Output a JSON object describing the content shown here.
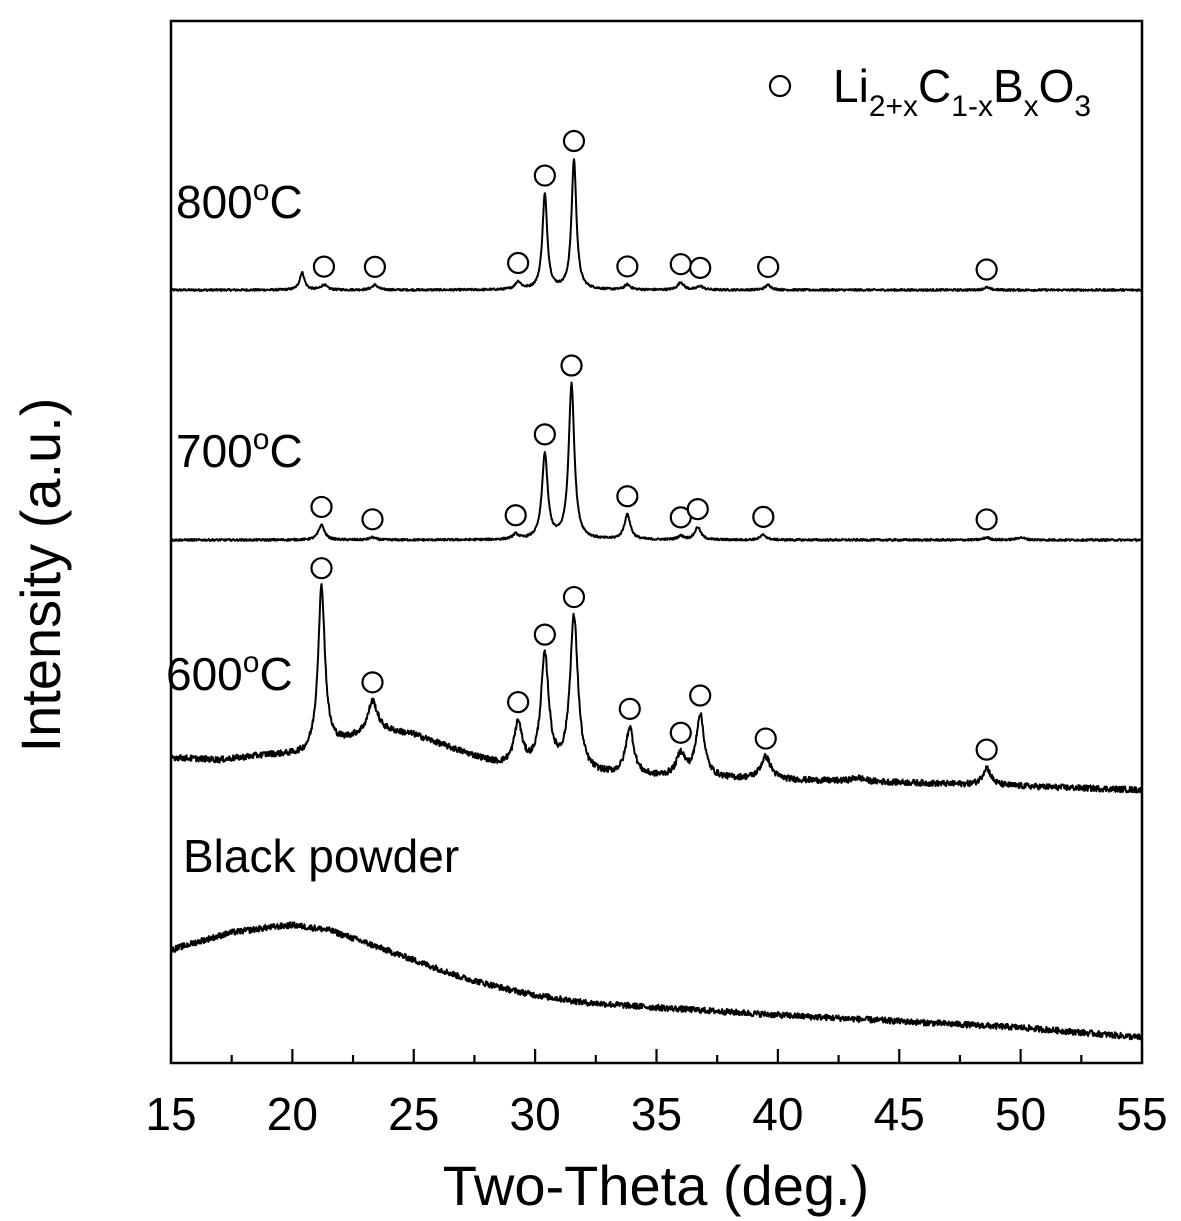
{
  "chart_data": {
    "type": "line",
    "title": "",
    "xlabel": "Two-Theta (deg.)",
    "ylabel": "Intensity (a.u.)",
    "xlim": [
      15,
      55
    ],
    "xticks": [
      15,
      20,
      25,
      30,
      35,
      40,
      45,
      50,
      55
    ],
    "grid": false,
    "legend": {
      "placement": "top-right",
      "marker": "open-circle",
      "label_parts": [
        {
          "text": "Li",
          "sub": false
        },
        {
          "text": "2+x",
          "sub": true
        },
        {
          "text": "C",
          "sub": false
        },
        {
          "text": "1-x",
          "sub": true
        },
        {
          "text": "B",
          "sub": false
        },
        {
          "text": "x",
          "sub": true
        },
        {
          "text": "O",
          "sub": false
        },
        {
          "text": "3",
          "sub": true
        }
      ]
    },
    "series": [
      {
        "name": "800°C",
        "label_parts": [
          {
            "text": "800",
            "sup": false
          },
          {
            "text": "o",
            "sup": true
          },
          {
            "text": "C",
            "sup": false
          }
        ],
        "offset": 3.0,
        "noise": 0.004,
        "base": [
          [
            15,
            0
          ],
          [
            55,
            0
          ]
        ],
        "peaks": [
          [
            20.4,
            0.07,
            0.12
          ],
          [
            21.3,
            0.02,
            0.15
          ],
          [
            23.4,
            0.02,
            0.15
          ],
          [
            29.3,
            0.03,
            0.15
          ],
          [
            30.4,
            0.38,
            0.12
          ],
          [
            31.6,
            0.52,
            0.12
          ],
          [
            33.8,
            0.02,
            0.15
          ],
          [
            36.0,
            0.03,
            0.15
          ],
          [
            36.8,
            0.015,
            0.15
          ],
          [
            39.6,
            0.02,
            0.15
          ],
          [
            48.6,
            0.01,
            0.15
          ]
        ],
        "markers": [
          21.3,
          23.4,
          29.3,
          30.4,
          31.6,
          33.8,
          36.0,
          36.8,
          39.6,
          48.6
        ]
      },
      {
        "name": "700°C",
        "label_parts": [
          {
            "text": "700",
            "sup": false
          },
          {
            "text": "o",
            "sup": true
          },
          {
            "text": "C",
            "sup": false
          }
        ],
        "offset": 2.0,
        "noise": 0.004,
        "base": [
          [
            15,
            0
          ],
          [
            55,
            0
          ]
        ],
        "peaks": [
          [
            21.2,
            0.06,
            0.15
          ],
          [
            23.3,
            0.01,
            0.15
          ],
          [
            29.2,
            0.02,
            0.15
          ],
          [
            30.4,
            0.34,
            0.14
          ],
          [
            31.5,
            0.62,
            0.14
          ],
          [
            33.8,
            0.1,
            0.15
          ],
          [
            36.0,
            0.015,
            0.15
          ],
          [
            36.7,
            0.05,
            0.15
          ],
          [
            39.4,
            0.02,
            0.15
          ],
          [
            48.6,
            0.01,
            0.15
          ],
          [
            50.0,
            0.01,
            0.2
          ]
        ],
        "markers": [
          21.2,
          23.3,
          29.2,
          30.4,
          31.5,
          33.8,
          36.0,
          36.7,
          39.4,
          48.6
        ]
      },
      {
        "name": "600°C",
        "label_parts": [
          {
            "text": "600",
            "sup": false
          },
          {
            "text": "o",
            "sup": true
          },
          {
            "text": "C",
            "sup": false
          }
        ],
        "offset": 1.0,
        "noise": 0.012,
        "base": [
          [
            15,
            0.13
          ],
          [
            17,
            0.12
          ],
          [
            19,
            0.14
          ],
          [
            20.5,
            0.14
          ],
          [
            22,
            0.19
          ],
          [
            23.5,
            0.24
          ],
          [
            25,
            0.22
          ],
          [
            27,
            0.15
          ],
          [
            28.5,
            0.1
          ],
          [
            30,
            0.08
          ],
          [
            32,
            0.06
          ],
          [
            35,
            0.05
          ],
          [
            40,
            0.04
          ],
          [
            45,
            0.03
          ],
          [
            50,
            0.015
          ],
          [
            55,
            0
          ]
        ],
        "peaks": [
          [
            21.2,
            0.65,
            0.17
          ],
          [
            23.3,
            0.12,
            0.22
          ],
          [
            29.3,
            0.17,
            0.2
          ],
          [
            30.4,
            0.45,
            0.2
          ],
          [
            31.6,
            0.62,
            0.2
          ],
          [
            33.9,
            0.19,
            0.2
          ],
          [
            36.0,
            0.09,
            0.22
          ],
          [
            36.8,
            0.25,
            0.2
          ],
          [
            39.5,
            0.09,
            0.25
          ],
          [
            43.3,
            0.015,
            0.3
          ],
          [
            48.6,
            0.07,
            0.2
          ]
        ],
        "markers": [
          21.2,
          23.3,
          29.3,
          30.4,
          31.6,
          33.9,
          36.0,
          36.8,
          39.5,
          48.6
        ]
      },
      {
        "name": "Black powder",
        "label_parts": [
          {
            "text": "Black powder",
            "sup": false
          }
        ],
        "offset": 0.0,
        "noise": 0.012,
        "base": [
          [
            15,
            0.36
          ],
          [
            16,
            0.39
          ],
          [
            17.5,
            0.43
          ],
          [
            19,
            0.45
          ],
          [
            20,
            0.46
          ],
          [
            21.5,
            0.44
          ],
          [
            23,
            0.39
          ],
          [
            25,
            0.32
          ],
          [
            27,
            0.25
          ],
          [
            29,
            0.2
          ],
          [
            30,
            0.18
          ],
          [
            32,
            0.15
          ],
          [
            35,
            0.13
          ],
          [
            40,
            0.1
          ],
          [
            45,
            0.075
          ],
          [
            50,
            0.05
          ],
          [
            55,
            0.01
          ]
        ],
        "peaks": [],
        "markers": []
      }
    ]
  }
}
